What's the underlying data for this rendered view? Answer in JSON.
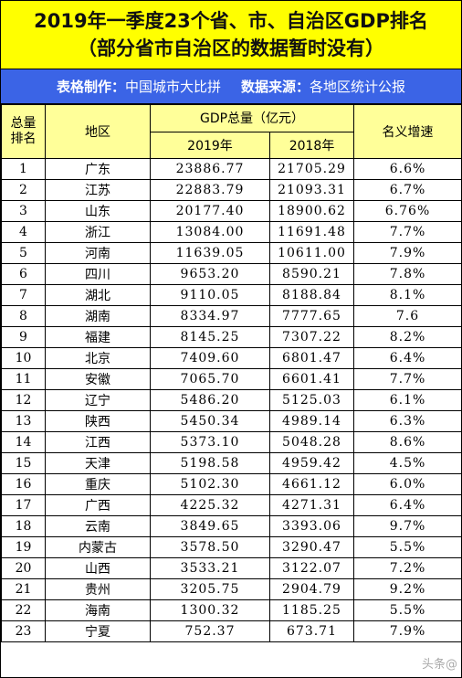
{
  "title": {
    "line1": "2019年一季度23个省、市、自治区GDP排名",
    "line2": "（部分省市自治区的数据暂时没有）"
  },
  "credits": {
    "maker_label": "表格制作：",
    "maker_value": "中国城市大比拼",
    "source_label": "数据来源：",
    "source_value": "各地区统计公报"
  },
  "table": {
    "headers": {
      "rank_line1": "总量",
      "rank_line2": "排名",
      "region": "地区",
      "gdp_total": "GDP总量（亿元）",
      "year_2019": "2019年",
      "year_2018": "2018年",
      "growth": "名义增速"
    },
    "rows": [
      {
        "rank": "1",
        "region": "广东",
        "gdp_2019": "23886.77",
        "gdp_2018": "21705.29",
        "growth": "6.6%"
      },
      {
        "rank": "2",
        "region": "江苏",
        "gdp_2019": "22883.79",
        "gdp_2018": "21093.31",
        "growth": "6.7%"
      },
      {
        "rank": "3",
        "region": "山东",
        "gdp_2019": "20177.40",
        "gdp_2018": "18900.62",
        "growth": "6.76%"
      },
      {
        "rank": "4",
        "region": "浙江",
        "gdp_2019": "13084.00",
        "gdp_2018": "11691.48",
        "growth": "7.7%"
      },
      {
        "rank": "5",
        "region": "河南",
        "gdp_2019": "11639.05",
        "gdp_2018": "10611.00",
        "growth": "7.9%"
      },
      {
        "rank": "6",
        "region": "四川",
        "gdp_2019": "9653.20",
        "gdp_2018": "8590.21",
        "growth": "7.8%"
      },
      {
        "rank": "7",
        "region": "湖北",
        "gdp_2019": "9110.05",
        "gdp_2018": "8188.84",
        "growth": "8.1%"
      },
      {
        "rank": "8",
        "region": "湖南",
        "gdp_2019": "8334.97",
        "gdp_2018": "7777.65",
        "growth": "7.6"
      },
      {
        "rank": "9",
        "region": "福建",
        "gdp_2019": "8145.25",
        "gdp_2018": "7307.22",
        "growth": "8.2%"
      },
      {
        "rank": "10",
        "region": "北京",
        "gdp_2019": "7409.60",
        "gdp_2018": "6801.47",
        "growth": "6.4%"
      },
      {
        "rank": "11",
        "region": "安徽",
        "gdp_2019": "7065.70",
        "gdp_2018": "6601.41",
        "growth": "7.7%"
      },
      {
        "rank": "12",
        "region": "辽宁",
        "gdp_2019": "5486.20",
        "gdp_2018": "5125.03",
        "growth": "6.1%"
      },
      {
        "rank": "13",
        "region": "陕西",
        "gdp_2019": "5450.34",
        "gdp_2018": "4989.14",
        "growth": "6.3%"
      },
      {
        "rank": "14",
        "region": "江西",
        "gdp_2019": "5373.10",
        "gdp_2018": "5048.28",
        "growth": "8.6%"
      },
      {
        "rank": "15",
        "region": "天津",
        "gdp_2019": "5198.58",
        "gdp_2018": "4959.42",
        "growth": "4.5%"
      },
      {
        "rank": "16",
        "region": "重庆",
        "gdp_2019": "5102.30",
        "gdp_2018": "4661.12",
        "growth": "6.0%"
      },
      {
        "rank": "17",
        "region": "广西",
        "gdp_2019": "4225.32",
        "gdp_2018": "4271.31",
        "growth": "6.4%"
      },
      {
        "rank": "18",
        "region": "云南",
        "gdp_2019": "3849.65",
        "gdp_2018": "3393.06",
        "growth": "9.7%"
      },
      {
        "rank": "19",
        "region": "内蒙古",
        "gdp_2019": "3578.50",
        "gdp_2018": "3290.47",
        "growth": "5.5%"
      },
      {
        "rank": "20",
        "region": "山西",
        "gdp_2019": "3533.21",
        "gdp_2018": "3122.07",
        "growth": "7.2%"
      },
      {
        "rank": "21",
        "region": "贵州",
        "gdp_2019": "3205.75",
        "gdp_2018": "2904.79",
        "growth": "9.2%"
      },
      {
        "rank": "22",
        "region": "海南",
        "gdp_2019": "1300.32",
        "gdp_2018": "1185.25",
        "growth": "5.5%"
      },
      {
        "rank": "23",
        "region": "宁夏",
        "gdp_2019": "752.37",
        "gdp_2018": "673.71",
        "growth": "7.9%"
      }
    ]
  },
  "watermark": "头条@",
  "colors": {
    "title_bg": "#ffff00",
    "credits_bg": "#3b64e6",
    "header_bg": "#ffff99"
  }
}
